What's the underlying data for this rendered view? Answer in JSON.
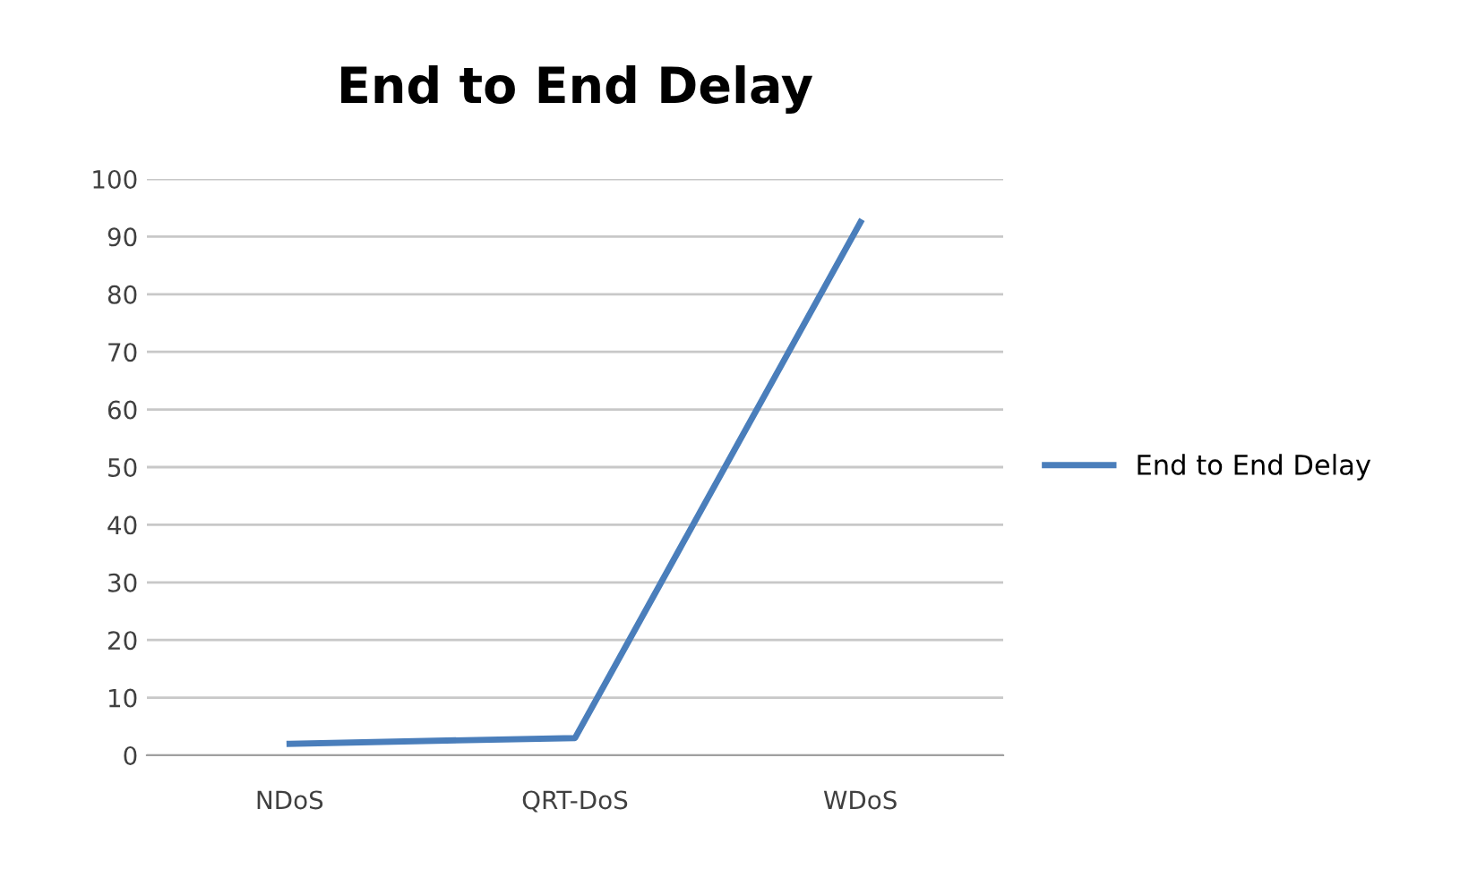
{
  "chart_data": {
    "type": "line",
    "title": "End to End Delay",
    "categories": [
      "NDoS",
      "QRT-DoS",
      "WDoS"
    ],
    "series": [
      {
        "name": "End to End Delay",
        "color": "#4a7ebb",
        "values": [
          2,
          3,
          92.5
        ]
      }
    ],
    "ylim": [
      0,
      100
    ],
    "yticks": [
      0,
      10,
      20,
      30,
      40,
      50,
      60,
      70,
      80,
      90,
      100
    ],
    "grid": "y",
    "legend": "right",
    "marker": "none",
    "line_style": "solid"
  }
}
